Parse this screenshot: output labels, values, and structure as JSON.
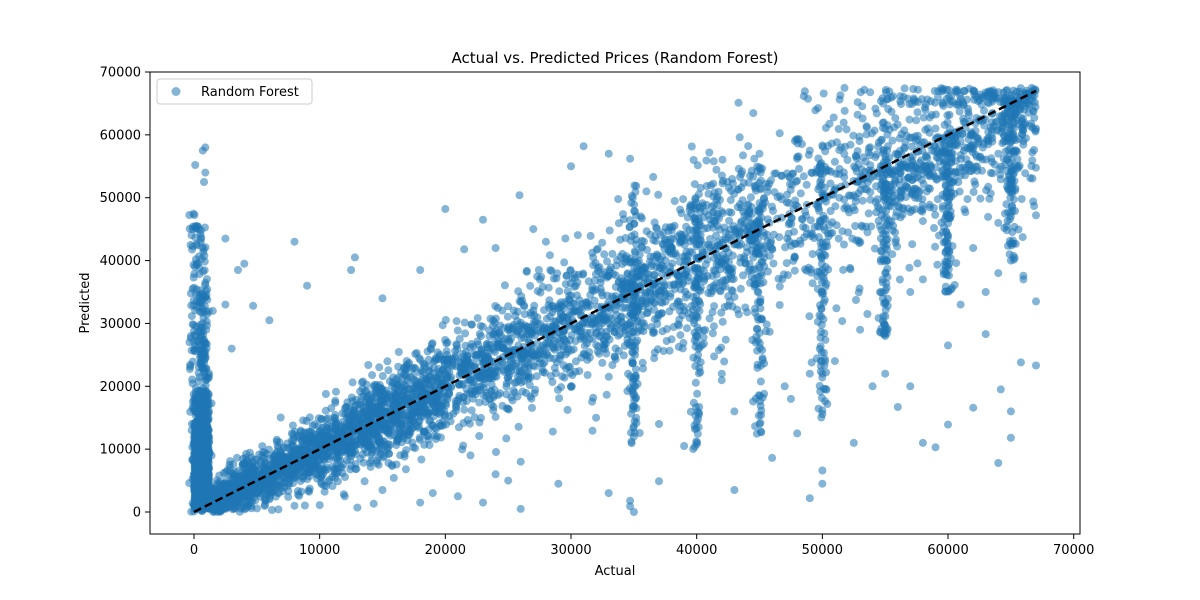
{
  "chart_data": {
    "type": "scatter",
    "title": "Actual vs. Predicted Prices (Random Forest)",
    "xlabel": "Actual",
    "ylabel": "Predicted",
    "xlim": [
      -3500,
      70500
    ],
    "ylim": [
      -3500,
      70000
    ],
    "xticks": [
      0,
      10000,
      20000,
      30000,
      40000,
      50000,
      60000,
      70000
    ],
    "yticks": [
      0,
      10000,
      20000,
      30000,
      40000,
      50000,
      60000,
      70000
    ],
    "xtick_labels": [
      "0",
      "10000",
      "20000",
      "30000",
      "40000",
      "50000",
      "60000",
      "70000"
    ],
    "ytick_labels": [
      "0",
      "10000",
      "20000",
      "30000",
      "40000",
      "50000",
      "60000",
      "70000"
    ],
    "legend": {
      "placement": "upper-left",
      "entries": [
        "Random Forest"
      ]
    },
    "grid": false,
    "colors": {
      "points": "#1f77b4",
      "reference_line": "#000000"
    },
    "reference_line": {
      "style": "dashed",
      "from": [
        0,
        0
      ],
      "to": [
        67000,
        67000
      ]
    },
    "series": [
      {
        "name": "Random Forest",
        "outliers": [
          [
            100,
            55200
          ],
          [
            900,
            58000
          ],
          [
            700,
            57500
          ],
          [
            900,
            54000
          ],
          [
            800,
            52500
          ],
          [
            2500,
            43500
          ],
          [
            8000,
            43000
          ],
          [
            12800,
            40500
          ],
          [
            20000,
            48200
          ],
          [
            23000,
            46500
          ],
          [
            25900,
            50400
          ],
          [
            30000,
            55000
          ],
          [
            31000,
            58200
          ],
          [
            33000,
            57000
          ],
          [
            34700,
            56200
          ],
          [
            36000,
            51000
          ],
          [
            41000,
            57200
          ],
          [
            45000,
            57000
          ],
          [
            48000,
            56500
          ],
          [
            49000,
            57500
          ],
          [
            50000,
            58300
          ],
          [
            52000,
            56000
          ],
          [
            55000,
            61000
          ],
          [
            59000,
            61000
          ],
          [
            61000,
            59000
          ],
          [
            62000,
            60000
          ],
          [
            64000,
            57000
          ],
          [
            66000,
            59000
          ],
          [
            67000,
            61000
          ],
          [
            67000,
            47200
          ],
          [
            67000,
            33500
          ],
          [
            67000,
            23300
          ],
          [
            66000,
            37600
          ],
          [
            65800,
            23800
          ],
          [
            65000,
            16000
          ],
          [
            65000,
            11800
          ],
          [
            64200,
            19500
          ],
          [
            64000,
            7800
          ],
          [
            63000,
            28300
          ],
          [
            62000,
            16600
          ],
          [
            60000,
            13900
          ],
          [
            59000,
            10300
          ],
          [
            58000,
            11000
          ],
          [
            57000,
            20000
          ],
          [
            56000,
            16700
          ],
          [
            55000,
            22000
          ],
          [
            54000,
            20000
          ],
          [
            52500,
            11000
          ],
          [
            50000,
            6600
          ],
          [
            50000,
            4500
          ],
          [
            49000,
            2200
          ],
          [
            48000,
            12500
          ],
          [
            46000,
            8600
          ],
          [
            43000,
            3500
          ],
          [
            39000,
            10500
          ],
          [
            37000,
            4900
          ],
          [
            34700,
            1800
          ],
          [
            34700,
            900
          ],
          [
            35000,
            0
          ],
          [
            33000,
            3000
          ],
          [
            29000,
            4500
          ],
          [
            26000,
            500
          ],
          [
            25000,
            5000
          ],
          [
            23000,
            1500
          ],
          [
            21000,
            2500
          ],
          [
            18000,
            1500
          ],
          [
            13000,
            700
          ],
          [
            10000,
            1100
          ],
          [
            8000,
            1000
          ],
          [
            6000,
            2000
          ],
          [
            3000,
            26000
          ],
          [
            3500,
            38500
          ],
          [
            4000,
            39500
          ],
          [
            1500,
            32000
          ],
          [
            2500,
            33000
          ],
          [
            4700,
            32800
          ],
          [
            6000,
            30500
          ],
          [
            9000,
            36000
          ],
          [
            12500,
            38500
          ],
          [
            15000,
            34000
          ],
          [
            18000,
            38500
          ],
          [
            21500,
            41800
          ],
          [
            24000,
            42000
          ],
          [
            27000,
            45000
          ],
          [
            28000,
            43000
          ],
          [
            40000,
            27000
          ],
          [
            42000,
            22000
          ],
          [
            43000,
            16000
          ],
          [
            45000,
            14000
          ],
          [
            47000,
            20000
          ],
          [
            47500,
            18000
          ],
          [
            49000,
            22000
          ],
          [
            51000,
            24000
          ],
          [
            53000,
            29000
          ],
          [
            55000,
            28000
          ],
          [
            57000,
            35000
          ],
          [
            58000,
            37000
          ],
          [
            60000,
            26500
          ],
          [
            61000,
            33000
          ],
          [
            63000,
            35000
          ],
          [
            64000,
            38000
          ],
          [
            66000,
            37000
          ],
          [
            62000,
            42000
          ],
          [
            64000,
            46000
          ],
          [
            65000,
            40000
          ],
          [
            30000,
            20000
          ],
          [
            32000,
            15000
          ],
          [
            35000,
            12000
          ],
          [
            37000,
            14000
          ],
          [
            26000,
            8000
          ],
          [
            24000,
            6000
          ],
          [
            22000,
            9000
          ],
          [
            19000,
            3000
          ],
          [
            15000,
            3500
          ],
          [
            12000,
            2500
          ]
        ]
      }
    ]
  }
}
